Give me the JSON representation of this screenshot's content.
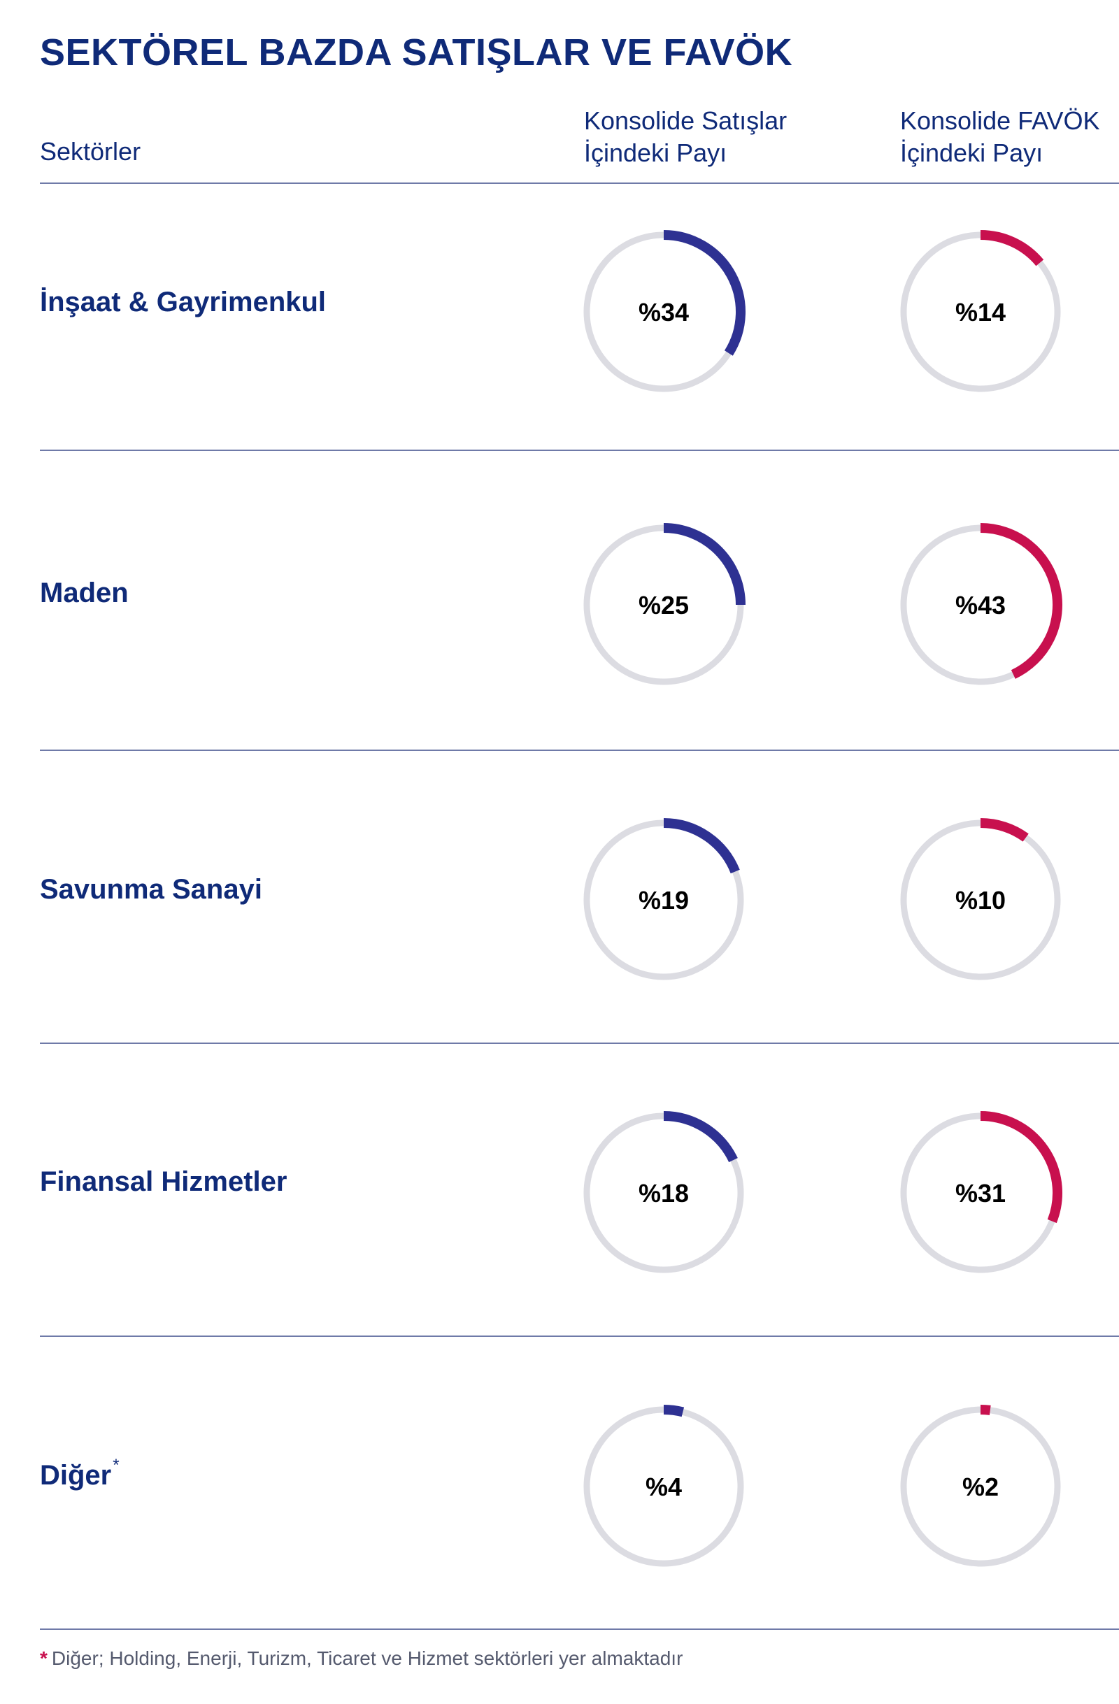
{
  "title": "SEKTÖREL BAZDA SATIŞLAR VE FAVÖK",
  "headers": {
    "sector": "Sektörler",
    "sales_line1": "Konsolide Satışlar",
    "sales_line2": "İçindeki Payı",
    "ebitda_line1": "Konsolide FAVÖK",
    "ebitda_line2": "İçindeki Payı"
  },
  "colors": {
    "sales": "#2e3192",
    "ebitda": "#c8104e",
    "track": "#dcdce2"
  },
  "chart_data": {
    "type": "pie",
    "subtype": "donut-table",
    "value_prefix": "%",
    "series": [
      {
        "key": "sales",
        "values": [
          34,
          25,
          19,
          18,
          4
        ]
      },
      {
        "key": "ebitda",
        "values": [
          14,
          43,
          10,
          31,
          2
        ]
      }
    ],
    "categories": [
      "İnşaat & Gayrimenkul",
      "Maden",
      "Savunma Sanayi",
      "Finansal Hizmetler",
      "Diğer"
    ]
  },
  "rows": [
    {
      "label": "İnşaat & Gayrimenkul",
      "note_mark": "",
      "sales": 34,
      "ebitda": 14,
      "sales_label": "%34",
      "ebitda_label": "%14"
    },
    {
      "label": "Maden",
      "note_mark": "",
      "sales": 25,
      "ebitda": 43,
      "sales_label": "%25",
      "ebitda_label": "%43"
    },
    {
      "label": "Savunma Sanayi",
      "note_mark": "",
      "sales": 19,
      "ebitda": 10,
      "sales_label": "%19",
      "ebitda_label": "%10"
    },
    {
      "label": "Finansal Hizmetler",
      "note_mark": "",
      "sales": 18,
      "ebitda": 31,
      "sales_label": "%18",
      "ebitda_label": "%31"
    },
    {
      "label": "Diğer",
      "note_mark": "*",
      "sales": 4,
      "ebitda": 2,
      "sales_label": "%4",
      "ebitda_label": "%2"
    }
  ],
  "footnote": {
    "mark": "*",
    "text": "Diğer; Holding, Enerji, Turizm, Ticaret ve Hizmet sektörleri yer almaktadır"
  }
}
